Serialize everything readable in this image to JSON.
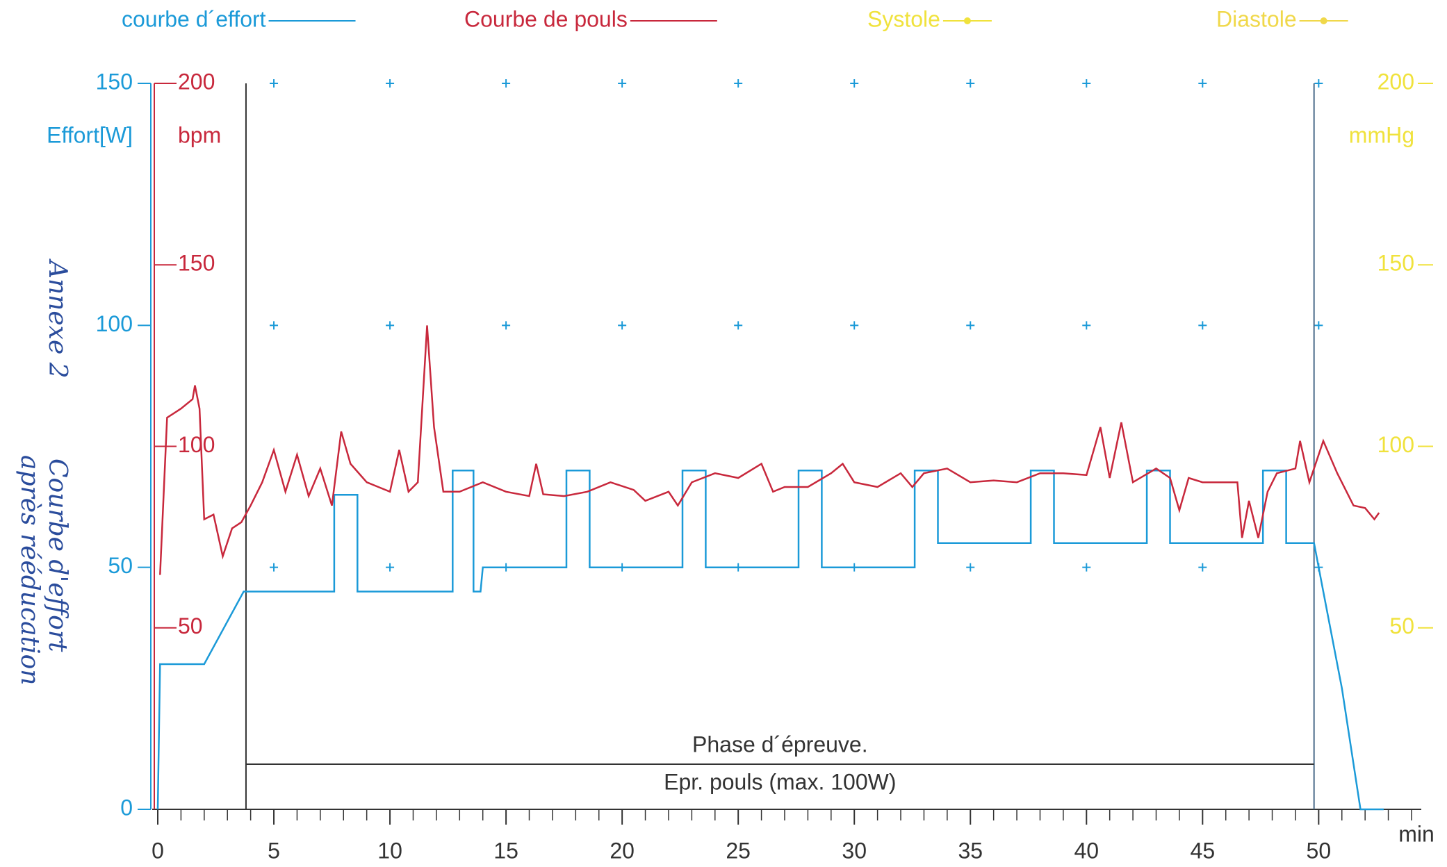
{
  "chart_data": {
    "type": "line",
    "annotations": [
      "Annexe 2",
      "Courbe d'effort",
      "après rééducation"
    ],
    "x_label": "min",
    "y_label": "Effort[W]",
    "y2_label": "bpm",
    "y3_label": "mmHg",
    "xlim": [
      0,
      54.3
    ],
    "xticks": [
      0,
      5,
      10,
      15,
      20,
      25,
      30,
      35,
      40,
      45,
      50
    ],
    "xminorticks": [
      1,
      2,
      3,
      4,
      6,
      7,
      8,
      9,
      11,
      12,
      13,
      14,
      16,
      17,
      18,
      19,
      21,
      22,
      23,
      24,
      26,
      27,
      28,
      29,
      31,
      32,
      33,
      34,
      36,
      37,
      38,
      39,
      41,
      42,
      43,
      44,
      46,
      47,
      48,
      49,
      51,
      52,
      53,
      54
    ],
    "ylim": [
      0,
      150
    ],
    "yticks": [
      0,
      50,
      100,
      150
    ],
    "y2lim": [
      0,
      200
    ],
    "y2ticks": [
      50,
      100,
      150,
      200
    ],
    "y3lim": [
      0,
      200
    ],
    "y3ticks": [
      50,
      100,
      150,
      200
    ],
    "grid": "cross",
    "phase": {
      "label": "Phase d´épreuve.",
      "sublabel": "Epr. pouls (max. 100W)",
      "start": 3.8,
      "end": 49.8
    },
    "series": [
      {
        "name": "courbe d´effort",
        "color": "#1b9ad8",
        "axis": "y",
        "x": [
          0,
          0.1,
          2.0,
          3.7,
          7.6,
          7.6,
          8.6,
          8.6,
          12.7,
          12.7,
          13.6,
          13.6,
          13.9,
          14.0,
          17.6,
          17.6,
          18.6,
          18.6,
          22.6,
          22.6,
          23.6,
          23.6,
          27.6,
          27.6,
          28.6,
          28.6,
          32.6,
          32.6,
          33.6,
          33.6,
          37.6,
          37.6,
          38.6,
          38.6,
          42.6,
          42.6,
          43.6,
          43.6,
          47.6,
          47.6,
          48.6,
          48.6,
          49.8,
          50.2,
          51.0,
          51.8,
          52.8
        ],
        "values": [
          0,
          30,
          30,
          45,
          45,
          65,
          65,
          45,
          45,
          70,
          70,
          45,
          45,
          50,
          50,
          70,
          70,
          50,
          50,
          70,
          70,
          50,
          50,
          70,
          70,
          50,
          50,
          70,
          70,
          55,
          55,
          70,
          70,
          55,
          55,
          70,
          70,
          55,
          55,
          70,
          70,
          55,
          55,
          45,
          25,
          0,
          0
        ]
      },
      {
        "name": "Courbe de pouls",
        "color": "#c8283c",
        "axis": "y2",
        "x": [
          0.1,
          0.4,
          1.0,
          1.5,
          1.6,
          1.8,
          2.0,
          2.4,
          2.8,
          3.2,
          3.6,
          4.0,
          4.5,
          5.0,
          5.5,
          6.0,
          6.5,
          7.0,
          7.5,
          7.9,
          8.3,
          9.0,
          9.5,
          10.0,
          10.4,
          10.8,
          11.2,
          11.6,
          11.9,
          12.3,
          13,
          14,
          15,
          16,
          16.3,
          16.6,
          17.5,
          18.5,
          19.5,
          20.5,
          21,
          22,
          22.4,
          23,
          24,
          25,
          26,
          26.5,
          27,
          28,
          29,
          29.5,
          30,
          31,
          32,
          32.5,
          33,
          34,
          35,
          36,
          37,
          38,
          39,
          40,
          40.6,
          41,
          41.5,
          42,
          43,
          43.6,
          44,
          44.4,
          45,
          46,
          46.5,
          46.7,
          47,
          47.4,
          47.8,
          48.2,
          49,
          49.2,
          49.6,
          50.2,
          50.8,
          51.5,
          52,
          52.4,
          52.6
        ],
        "values": [
          64.6,
          107.9,
          110.4,
          113,
          116.8,
          110.4,
          79.9,
          81.2,
          69.7,
          77.4,
          79.1,
          83.7,
          90.1,
          99,
          87.5,
          97.7,
          86.3,
          93.9,
          83.7,
          104.1,
          95.2,
          90.1,
          88.8,
          87.5,
          99,
          87.5,
          90.1,
          133.3,
          105.3,
          87.5,
          87.5,
          90.1,
          87.5,
          86.3,
          95.2,
          86.8,
          86.3,
          87.5,
          90.1,
          88,
          85,
          87.5,
          83.7,
          90.1,
          92.6,
          91.3,
          95.2,
          87.5,
          88.8,
          88.8,
          92.6,
          95.2,
          90.1,
          88.8,
          92.6,
          88.8,
          92.6,
          93.9,
          90.1,
          90.6,
          90.1,
          92.6,
          92.6,
          92.1,
          105.3,
          91.3,
          106.6,
          90.1,
          93.9,
          91.3,
          82.4,
          91.3,
          90.1,
          90.1,
          90.1,
          74.8,
          85,
          74.8,
          87.5,
          92.6,
          93.9,
          101.5,
          90.1,
          101.5,
          92.6,
          83.7,
          83,
          79.9,
          81.7
        ]
      },
      {
        "name": "Systole",
        "color": "#f0e23c",
        "axis": "y3",
        "x": [],
        "values": []
      },
      {
        "name": "Diastole",
        "color": "#f0d84a",
        "axis": "y3",
        "x": [],
        "values": []
      }
    ]
  }
}
